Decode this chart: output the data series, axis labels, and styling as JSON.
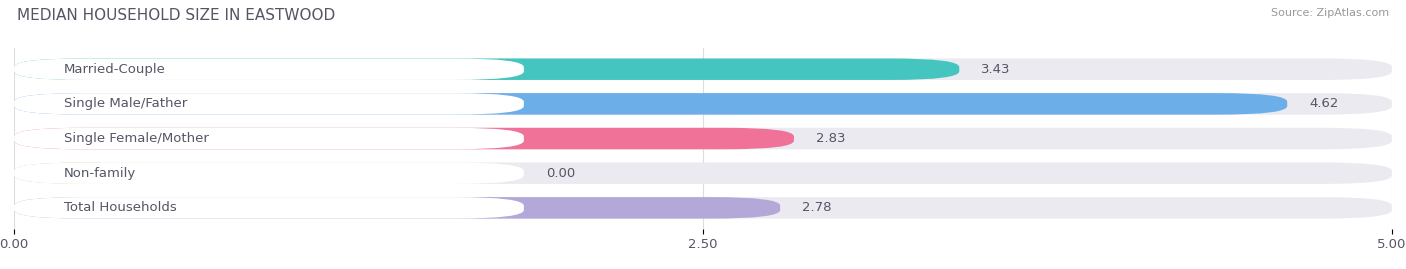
{
  "title": "MEDIAN HOUSEHOLD SIZE IN EASTWOOD",
  "source": "Source: ZipAtlas.com",
  "categories": [
    "Married-Couple",
    "Single Male/Father",
    "Single Female/Mother",
    "Non-family",
    "Total Households"
  ],
  "values": [
    3.43,
    4.62,
    2.83,
    0.0,
    2.78
  ],
  "bar_colors": [
    "#45C5C0",
    "#6BAEE8",
    "#F07298",
    "#F5C88A",
    "#B3A8D8"
  ],
  "bar_bg_color": "#EAEAF0",
  "label_bg_color": "#FFFFFF",
  "xlim": [
    0,
    5.0
  ],
  "xtick_labels": [
    "0.00",
    "2.50",
    "5.00"
  ],
  "label_fontsize": 9.5,
  "value_fontsize": 9.5,
  "title_fontsize": 11,
  "fig_bg_color": "#FFFFFF",
  "bar_height": 0.62,
  "text_color": "#555566",
  "source_color": "#999999",
  "grid_color": "#DDDDDD"
}
